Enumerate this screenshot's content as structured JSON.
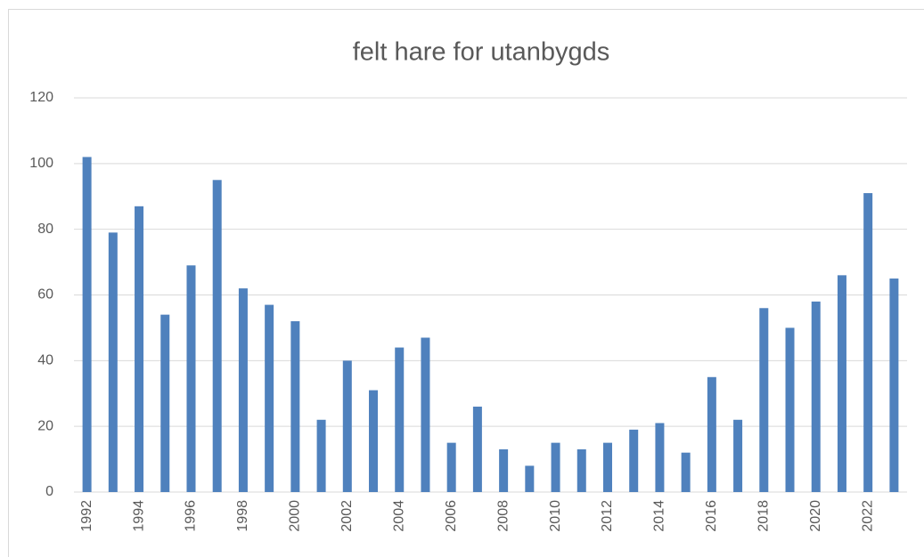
{
  "chart_data": {
    "type": "bar",
    "title": "felt hare for utanbygds",
    "categories": [
      "1992",
      null,
      "1994",
      null,
      "1996",
      null,
      "1998",
      null,
      "2000",
      null,
      "2002",
      null,
      "2004",
      null,
      "2006",
      null,
      "2008",
      null,
      "2010",
      null,
      "2012",
      null,
      "2014",
      null,
      "2016",
      null,
      "2018",
      null,
      "2020",
      null,
      "2022",
      null
    ],
    "values": [
      102,
      79,
      87,
      54,
      69,
      95,
      62,
      57,
      52,
      22,
      40,
      31,
      44,
      47,
      15,
      26,
      13,
      8,
      15,
      13,
      15,
      19,
      21,
      12,
      35,
      22,
      56,
      50,
      58,
      66,
      91,
      65
    ],
    "color": "#4f81bd",
    "ylim": [
      0,
      120
    ],
    "yticks": [
      0,
      20,
      40,
      60,
      80,
      100,
      120
    ],
    "grid": true
  }
}
